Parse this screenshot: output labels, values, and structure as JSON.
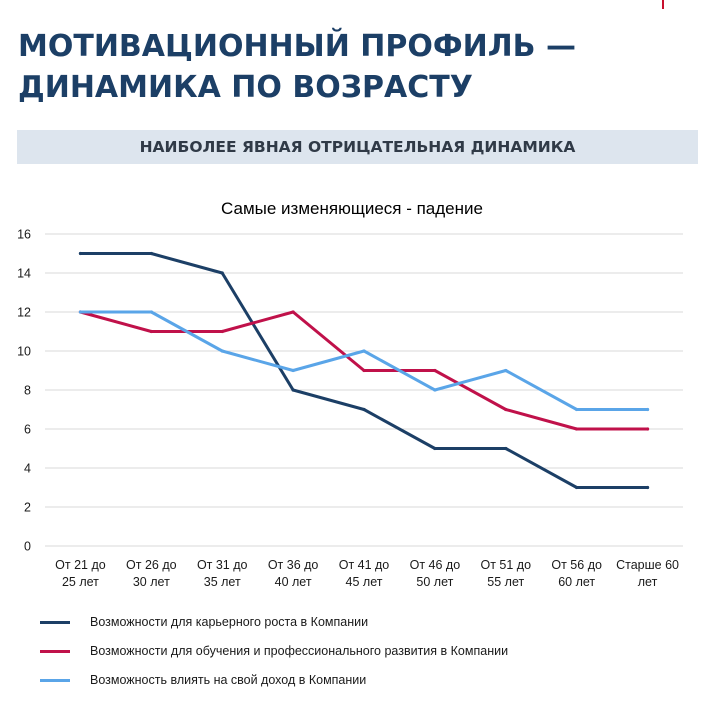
{
  "page": {
    "title_lines": [
      "МОТИВАЦИОННЫЙ ПРОФИЛЬ —",
      "ДИНАМИКА ПО ВОЗРАСТУ"
    ],
    "subtitle": "НАИБОЛЕЕ ЯВНАЯ ОТРИЦАТЕЛЬНАЯ ДИНАМИКА"
  },
  "chart_data": {
    "type": "line",
    "title": "Самые изменяющиеся - падение",
    "categories": [
      [
        "От 21 до",
        "25 лет"
      ],
      [
        "От 26 до",
        "30 лет"
      ],
      [
        "От 31 до",
        "35 лет"
      ],
      [
        "От 36 до",
        "40 лет"
      ],
      [
        "От 41 до",
        "45 лет"
      ],
      [
        "От 46 до",
        "50 лет"
      ],
      [
        "От 51 до",
        "55 лет"
      ],
      [
        "От 56 до",
        "60 лет"
      ],
      [
        "Старше 60",
        "лет"
      ]
    ],
    "y_ticks": [
      "0",
      "2",
      "4",
      "6",
      "8",
      "10",
      "12",
      "14",
      "16"
    ],
    "ylim": [
      0,
      16
    ],
    "grid": true,
    "legend_position": "bottom-left",
    "series": [
      {
        "name": "Возможности для карьерного роста в Компании",
        "color": "#1c3f66",
        "values": [
          15,
          15,
          14,
          8,
          7,
          5,
          5,
          3,
          3
        ]
      },
      {
        "name": "Возможности для обучения и профессионального развития в Компании",
        "color": "#c0114a",
        "values": [
          12,
          11,
          11,
          12,
          9,
          9,
          7,
          6,
          6
        ]
      },
      {
        "name": "Возможность влиять на свой доход в Компании",
        "color": "#5aa5e8",
        "values": [
          12,
          12,
          10,
          9,
          10,
          8,
          9,
          7,
          7
        ]
      }
    ]
  }
}
